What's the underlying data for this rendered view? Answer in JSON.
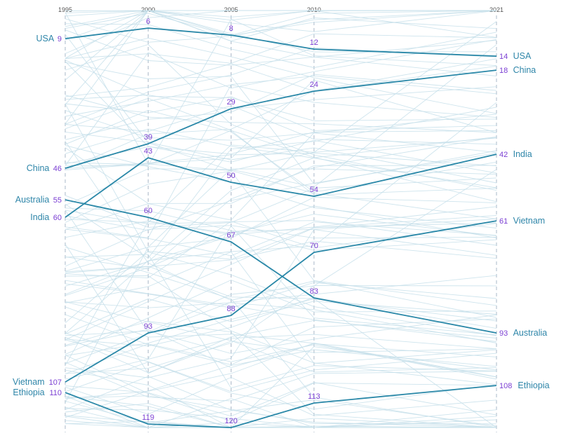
{
  "chart_data": {
    "type": "line",
    "subtype": "bump",
    "x": [
      "1995",
      "2000",
      "2005",
      "2010",
      "2021"
    ],
    "x_values": [
      1995,
      2000,
      2005,
      2010,
      2021
    ],
    "y_direction": "rank, 1 at top (inverted)",
    "ylim": [
      0,
      126
    ],
    "grid": true,
    "colors": {
      "highlight": "#2a88a8",
      "background_lines": "#c6dfea",
      "rank_labels": "#7b3fd3",
      "country_labels": "#2f86a9",
      "year_axis": "#aab8c8"
    },
    "series": [
      {
        "name": "USA",
        "values": [
          9,
          6,
          8,
          12,
          14
        ]
      },
      {
        "name": "China",
        "values": [
          46,
          39,
          29,
          24,
          18
        ]
      },
      {
        "name": "India",
        "values": [
          60,
          43,
          50,
          54,
          42
        ]
      },
      {
        "name": "Australia",
        "values": [
          55,
          60,
          67,
          83,
          93
        ]
      },
      {
        "name": "Vietnam",
        "values": [
          107,
          93,
          88,
          70,
          61
        ]
      },
      {
        "name": "Ethiopia",
        "values": [
          110,
          119,
          120,
          113,
          108
        ]
      }
    ],
    "background_series_count": 120
  }
}
